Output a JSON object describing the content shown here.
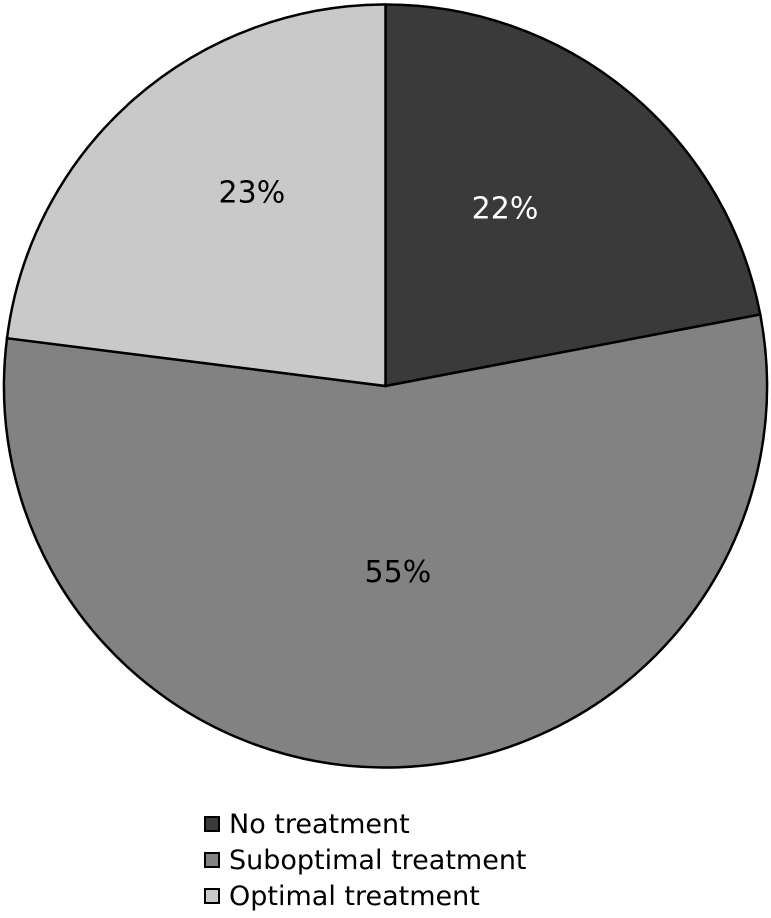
{
  "figure": {
    "background": "#ffffff"
  },
  "chart_data": {
    "type": "pie",
    "title": "",
    "categories": [
      "No treatment",
      "Suboptimal treatment",
      "Optimal treatment"
    ],
    "values": [
      22,
      55,
      23
    ],
    "slices": [
      {
        "label": "No treatment",
        "value": 22,
        "display": "22%",
        "color": "#3a3a3a",
        "text_color": "#ffffff",
        "label_angle_deg": 34,
        "label_r_frac": 0.56
      },
      {
        "label": "Suboptimal treatment",
        "value": 55,
        "display": "55%",
        "color": "#828282",
        "text_color": "#000000",
        "label_angle_deg": 176.2,
        "label_r_frac": 0.49
      },
      {
        "label": "Optimal treatment",
        "value": 23,
        "display": "23%",
        "color": "#c9c9c9",
        "text_color": "#000000",
        "label_angle_deg": 325.3,
        "label_r_frac": 0.615
      }
    ],
    "start_angle_deg": 0,
    "direction": "clockwise",
    "stroke_color": "#000000",
    "stroke_width": 2.5,
    "legend_position": "bottom",
    "grid": false
  }
}
